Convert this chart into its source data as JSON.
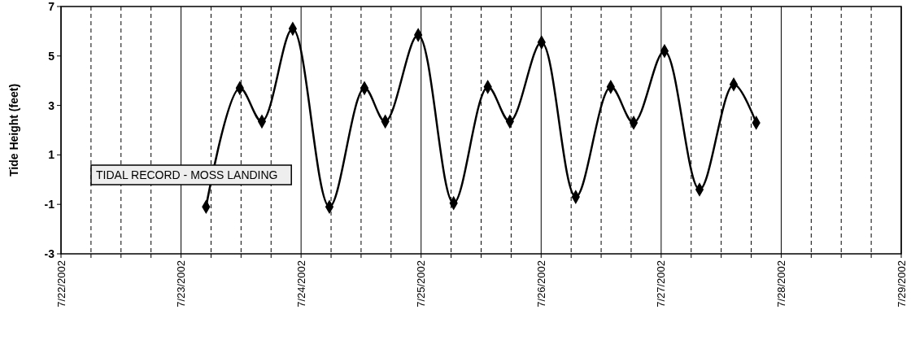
{
  "chart_data": {
    "type": "line",
    "ylabel": "Tide Height (feet)",
    "annotations": [
      "TIDAL RECORD - MOSS LANDING"
    ],
    "x": [
      "2002-07-23T05:00",
      "2002-07-23T11:45",
      "2002-07-23T16:10",
      "2002-07-23T22:20",
      "2002-07-24T05:40",
      "2002-07-24T12:40",
      "2002-07-24T16:50",
      "2002-07-24T23:25",
      "2002-07-25T06:30",
      "2002-07-25T13:20",
      "2002-07-25T17:45",
      "2002-07-26T00:05",
      "2002-07-26T06:55",
      "2002-07-26T13:55",
      "2002-07-26T18:30",
      "2002-07-27T00:40",
      "2002-07-27T07:40",
      "2002-07-27T14:30",
      "2002-07-27T19:00"
    ],
    "series": [
      {
        "color": "#000000",
        "values": [
          -1.1,
          3.7,
          2.35,
          6.1,
          -1.1,
          3.7,
          2.35,
          5.85,
          -0.95,
          3.75,
          2.35,
          5.55,
          -0.7,
          3.75,
          2.3,
          5.2,
          -0.4,
          3.85,
          2.3
        ]
      }
    ],
    "xlim": [
      "2002-07-22",
      "2002-07-29"
    ],
    "xticks": [
      {
        "value": "2002-07-22",
        "label": "7/22/2002"
      },
      {
        "value": "2002-07-22T06:00",
        "label": null
      },
      {
        "value": "2002-07-22T12:00",
        "label": null
      },
      {
        "value": "2002-07-22T18:00",
        "label": null
      },
      {
        "value": "2002-07-23",
        "label": "7/23/2002"
      },
      {
        "value": "2002-07-23T06:00",
        "label": null
      },
      {
        "value": "2002-07-23T12:00",
        "label": null
      },
      {
        "value": "2002-07-23T18:00",
        "label": null
      },
      {
        "value": "2002-07-24",
        "label": "7/24/2002"
      },
      {
        "value": "2002-07-24T06:00",
        "label": null
      },
      {
        "value": "2002-07-24T12:00",
        "label": null
      },
      {
        "value": "2002-07-24T18:00",
        "label": null
      },
      {
        "value": "2002-07-25",
        "label": "7/25/2002"
      },
      {
        "value": "2002-07-25T06:00",
        "label": null
      },
      {
        "value": "2002-07-25T12:00",
        "label": null
      },
      {
        "value": "2002-07-25T18:00",
        "label": null
      },
      {
        "value": "2002-07-26",
        "label": "7/26/2002"
      },
      {
        "value": "2002-07-26T06:00",
        "label": null
      },
      {
        "value": "2002-07-26T12:00",
        "label": null
      },
      {
        "value": "2002-07-26T18:00",
        "label": null
      },
      {
        "value": "2002-07-27",
        "label": "7/27/2002"
      },
      {
        "value": "2002-07-27T06:00",
        "label": null
      },
      {
        "value": "2002-07-27T12:00",
        "label": null
      },
      {
        "value": "2002-07-27T18:00",
        "label": null
      },
      {
        "value": "2002-07-28",
        "label": "7/28/2002"
      },
      {
        "value": "2002-07-28T06:00",
        "label": null
      },
      {
        "value": "2002-07-28T12:00",
        "label": null
      },
      {
        "value": "2002-07-28T18:00",
        "label": null
      },
      {
        "value": "2002-07-29",
        "label": "7/29/2002"
      }
    ],
    "ylim": [
      -3,
      7
    ],
    "yticks": [
      -3,
      -1,
      1,
      3,
      5,
      7
    ],
    "grid": "x",
    "marker": "diamond",
    "line_style": "solid"
  }
}
